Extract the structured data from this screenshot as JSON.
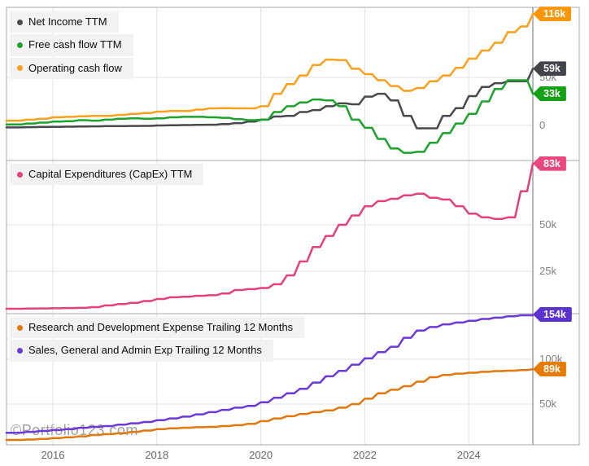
{
  "watermark": "©Portfolio123.com",
  "x_axis": {
    "labels": [
      {
        "text": "2016",
        "year": 2016
      },
      {
        "text": "2018",
        "year": 2018
      },
      {
        "text": "2020",
        "year": 2020
      },
      {
        "text": "2022",
        "year": 2022
      },
      {
        "text": "2024",
        "year": 2024
      }
    ]
  },
  "x_years": [
    2015.25,
    2015.5,
    2015.75,
    2016,
    2016.25,
    2016.5,
    2016.75,
    2017,
    2017.25,
    2017.5,
    2017.75,
    2018,
    2018.25,
    2018.5,
    2018.75,
    2019,
    2019.25,
    2019.5,
    2019.75,
    2020,
    2020.25,
    2020.5,
    2020.75,
    2021,
    2021.25,
    2021.5,
    2021.75,
    2022,
    2022.25,
    2022.5,
    2022.75,
    2023,
    2023.25,
    2023.5,
    2023.75,
    2024,
    2024.25,
    2024.5,
    2024.75,
    2025,
    2025.25
  ],
  "chart_data": [
    {
      "type": "line",
      "panel": "cash-flows",
      "units": "thousands (k) of millions USD",
      "grid": true,
      "legend_position": "top-left",
      "yticks": [
        {
          "label": "50k",
          "value": 50
        },
        {
          "label": "0",
          "value": 0
        }
      ],
      "series": [
        {
          "name": "Net Income TTM",
          "color": "#48484f",
          "badge_color": "#44444d",
          "end_label": "59k",
          "values": [
            -2.0,
            -1.8,
            -1.6,
            -1.5,
            -1.3,
            -1.1,
            -0.9,
            -0.7,
            -0.6,
            -0.5,
            -0.4,
            0.0,
            0.2,
            0.4,
            0.6,
            0.8,
            1.5,
            2.5,
            4.0,
            6.0,
            9.3,
            10.0,
            14.0,
            16.0,
            20.0,
            23.0,
            22.0,
            30.0,
            33.0,
            26.0,
            10.0,
            -3.0,
            -3.0,
            10.0,
            18.0,
            30.5,
            40.0,
            44.0,
            46.0,
            46.0,
            59.0
          ]
        },
        {
          "name": "Free cash flow TTM",
          "color": "#1da32b",
          "badge_color": "#16a016",
          "end_label": "33k",
          "values": [
            1.0,
            2.0,
            3.0,
            4.0,
            4.5,
            5.5,
            5.0,
            6.0,
            7.0,
            7.5,
            7.0,
            7.5,
            8.5,
            9.0,
            9.0,
            8.5,
            8.0,
            6.5,
            5.5,
            6.0,
            14.0,
            20.0,
            24.0,
            27.0,
            26.0,
            20.0,
            6.0,
            -2.5,
            -14.0,
            -24.0,
            -28.5,
            -27.5,
            -18.0,
            -8.0,
            2.0,
            12.0,
            25.0,
            38.0,
            47.0,
            47.0,
            33.0
          ]
        },
        {
          "name": "Operating cash flow",
          "color": "#f9a11c",
          "badge_color": "#f9960b",
          "end_label": "116k",
          "values": [
            5.0,
            6.0,
            7.0,
            8.5,
            9.0,
            9.5,
            10.0,
            10.0,
            11.0,
            12.0,
            13.0,
            14.4,
            15.0,
            15.0,
            16.5,
            17.8,
            18.0,
            17.8,
            17.8,
            20.0,
            33.0,
            43.0,
            52.0,
            63.0,
            68.6,
            68.0,
            59.0,
            53.4,
            47.0,
            41.0,
            36.0,
            39.0,
            46.0,
            52.0,
            60.0,
            69.5,
            78.0,
            86.0,
            97.0,
            103.0,
            116.0
          ]
        }
      ]
    },
    {
      "type": "line",
      "panel": "capex",
      "units": "thousands (k) of millions USD",
      "grid": true,
      "legend_position": "top-left",
      "yticks": [
        {
          "label": "50k",
          "value": 50
        },
        {
          "label": "25k",
          "value": 25
        }
      ],
      "series": [
        {
          "name": "Capital Expenditures (CapEx) TTM",
          "color": "#e2417b",
          "badge_color": "#ea477f",
          "end_label": "83k",
          "values": [
            4.8,
            4.9,
            5.0,
            5.1,
            5.2,
            5.3,
            5.7,
            6.6,
            7.3,
            8.0,
            9.0,
            10.1,
            11.0,
            11.3,
            11.8,
            12.1,
            13.0,
            14.9,
            15.4,
            16.0,
            18.0,
            22.8,
            30.3,
            38.0,
            44.0,
            50.0,
            55.0,
            60.0,
            62.7,
            64.0,
            65.8,
            66.7,
            64.5,
            63.6,
            60.0,
            56.0,
            54.0,
            53.1,
            54.0,
            68.0,
            83.0
          ]
        }
      ]
    },
    {
      "type": "line",
      "panel": "operating-expenses",
      "units": "thousands (k) of millions USD",
      "grid": true,
      "legend_position": "top-left",
      "yticks": [
        {
          "label": "100k",
          "value": 100
        },
        {
          "label": "50k",
          "value": 50
        }
      ],
      "series": [
        {
          "name": "Research and Development Expense Trailing 12 Months",
          "color": "#e2770d",
          "badge_color": "#e67c08",
          "end_label": "89k",
          "values": [
            10.0,
            10.5,
            11.2,
            12.0,
            13.0,
            14.0,
            15.5,
            16.5,
            17.5,
            19.0,
            20.5,
            22.0,
            23.0,
            23.6,
            24.2,
            24.5,
            25.5,
            26.5,
            28.0,
            31.0,
            34.0,
            36.5,
            39.0,
            41.0,
            43.0,
            46.0,
            50.0,
            56.0,
            62.0,
            66.0,
            70.0,
            75.0,
            80.0,
            82.5,
            84.0,
            85.0,
            86.0,
            86.8,
            87.3,
            88.0,
            89.0
          ]
        },
        {
          "name": "Sales, General and Admin Exp Trailing 12 Months",
          "color": "#6b3ad6",
          "badge_color": "#5c33d0",
          "end_label": "154k",
          "values": [
            18.0,
            19.0,
            20.0,
            21.0,
            22.0,
            23.5,
            24.5,
            25.5,
            27.0,
            28.5,
            30.0,
            32.0,
            34.0,
            36.0,
            38.5,
            41.0,
            43.5,
            46.0,
            48.0,
            52.0,
            57.0,
            62.0,
            67.0,
            74.0,
            81.0,
            87.0,
            94.0,
            101.0,
            108.0,
            114.0,
            124.0,
            132.0,
            136.0,
            139.0,
            141.0,
            143.0,
            145.0,
            146.5,
            148.0,
            151.0,
            154.0
          ]
        }
      ]
    }
  ]
}
